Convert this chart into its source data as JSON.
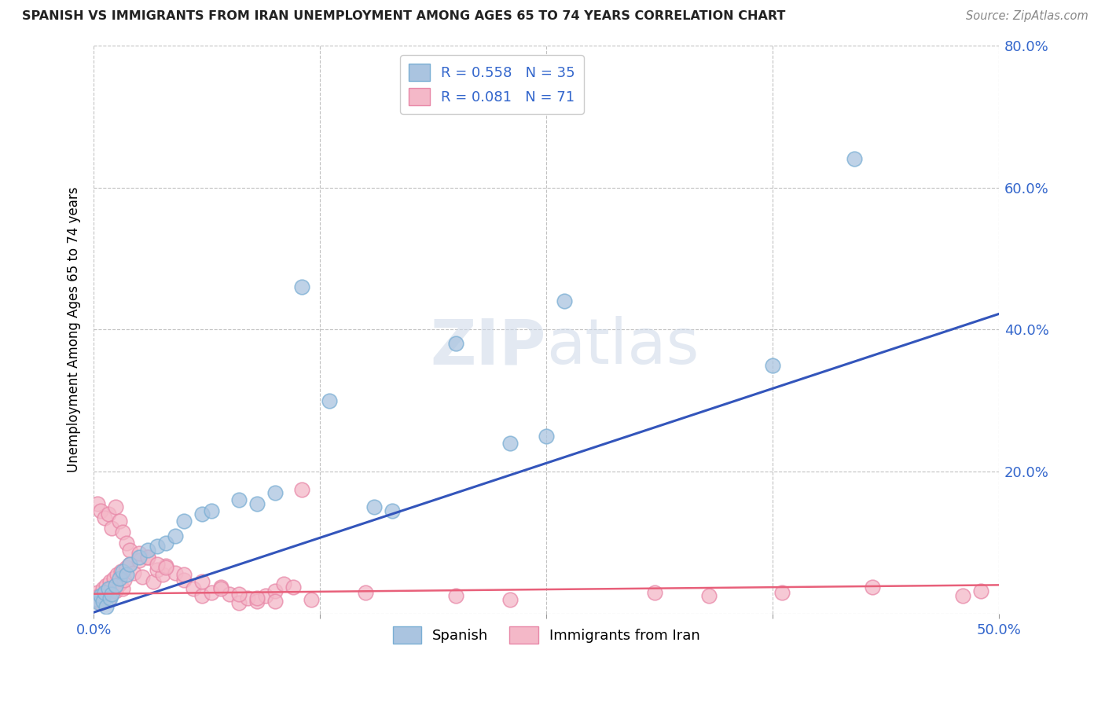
{
  "title": "SPANISH VS IMMIGRANTS FROM IRAN UNEMPLOYMENT AMONG AGES 65 TO 74 YEARS CORRELATION CHART",
  "source": "Source: ZipAtlas.com",
  "ylabel": "Unemployment Among Ages 65 to 74 years",
  "xlim": [
    0,
    0.5
  ],
  "ylim": [
    0,
    0.8
  ],
  "blue_color": "#aac4e0",
  "blue_edge_color": "#7bafd4",
  "pink_color": "#f4b8c8",
  "pink_edge_color": "#e888a8",
  "blue_line_color": "#3355bb",
  "pink_line_color": "#e8607a",
  "legend_label_blue": "Spanish",
  "legend_label_pink": "Immigrants from Iran",
  "watermark": "ZIPatlas",
  "blue_slope": 0.84,
  "blue_intercept": 0.002,
  "pink_slope": 0.025,
  "pink_intercept": 0.028,
  "spanish_x": [
    0.002,
    0.003,
    0.004,
    0.005,
    0.006,
    0.007,
    0.008,
    0.009,
    0.01,
    0.012,
    0.014,
    0.016,
    0.018,
    0.02,
    0.025,
    0.03,
    0.035,
    0.04,
    0.045,
    0.05,
    0.06,
    0.065,
    0.08,
    0.09,
    0.1,
    0.115,
    0.13,
    0.155,
    0.165,
    0.2,
    0.23,
    0.25,
    0.26,
    0.375,
    0.42
  ],
  "spanish_y": [
    0.02,
    0.015,
    0.025,
    0.018,
    0.03,
    0.01,
    0.035,
    0.022,
    0.028,
    0.04,
    0.05,
    0.06,
    0.055,
    0.07,
    0.08,
    0.09,
    0.095,
    0.1,
    0.11,
    0.13,
    0.14,
    0.145,
    0.16,
    0.155,
    0.17,
    0.46,
    0.3,
    0.15,
    0.145,
    0.38,
    0.24,
    0.25,
    0.44,
    0.35,
    0.64
  ],
  "iran_x": [
    0.002,
    0.003,
    0.004,
    0.005,
    0.006,
    0.007,
    0.008,
    0.009,
    0.01,
    0.011,
    0.012,
    0.013,
    0.014,
    0.015,
    0.016,
    0.017,
    0.018,
    0.02,
    0.022,
    0.025,
    0.027,
    0.03,
    0.033,
    0.035,
    0.038,
    0.04,
    0.045,
    0.05,
    0.055,
    0.06,
    0.065,
    0.07,
    0.075,
    0.08,
    0.085,
    0.09,
    0.095,
    0.1,
    0.105,
    0.11,
    0.115,
    0.12,
    0.002,
    0.004,
    0.006,
    0.008,
    0.01,
    0.012,
    0.014,
    0.016,
    0.018,
    0.02,
    0.025,
    0.03,
    0.035,
    0.04,
    0.05,
    0.06,
    0.07,
    0.08,
    0.09,
    0.1,
    0.15,
    0.2,
    0.23,
    0.31,
    0.34,
    0.38,
    0.43,
    0.48,
    0.49
  ],
  "iran_y": [
    0.03,
    0.025,
    0.015,
    0.035,
    0.028,
    0.04,
    0.02,
    0.045,
    0.038,
    0.05,
    0.032,
    0.055,
    0.042,
    0.06,
    0.035,
    0.048,
    0.065,
    0.07,
    0.058,
    0.075,
    0.052,
    0.08,
    0.045,
    0.062,
    0.055,
    0.068,
    0.058,
    0.048,
    0.035,
    0.025,
    0.03,
    0.038,
    0.028,
    0.015,
    0.022,
    0.018,
    0.025,
    0.032,
    0.042,
    0.038,
    0.175,
    0.02,
    0.155,
    0.145,
    0.135,
    0.14,
    0.12,
    0.15,
    0.13,
    0.115,
    0.1,
    0.09,
    0.085,
    0.08,
    0.07,
    0.065,
    0.055,
    0.045,
    0.035,
    0.028,
    0.022,
    0.018,
    0.03,
    0.025,
    0.02,
    0.03,
    0.025,
    0.03,
    0.038,
    0.025,
    0.032
  ]
}
